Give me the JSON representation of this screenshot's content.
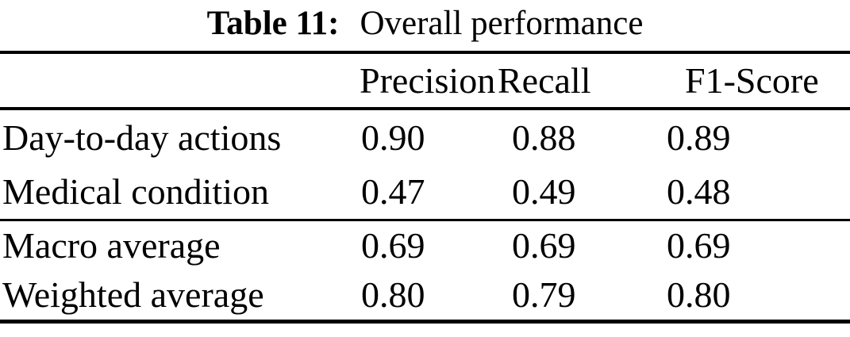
{
  "title": {
    "label": "Table 11:",
    "caption": "Overall performance"
  },
  "table": {
    "columns": {
      "metric": "",
      "precision": "Precision",
      "recall": "Recall",
      "f1": "F1-Score"
    },
    "groups": [
      {
        "rows": [
          {
            "label": "Day-to-day actions",
            "precision": "0.90",
            "recall": "0.88",
            "f1": "0.89"
          },
          {
            "label": "Medical condition",
            "precision": "0.47",
            "recall": "0.49",
            "f1": "0.48"
          }
        ]
      },
      {
        "rows": [
          {
            "label": "Macro average",
            "precision": "0.69",
            "recall": "0.69",
            "f1": "0.69"
          },
          {
            "label": "Weighted average",
            "precision": "0.80",
            "recall": "0.79",
            "f1": "0.80"
          }
        ]
      }
    ]
  },
  "chart_data": {
    "type": "table",
    "title": "Table 11: Overall performance",
    "columns": [
      "",
      "Precision",
      "Recall",
      "F1-Score"
    ],
    "rows": [
      [
        "Day-to-day actions",
        0.9,
        0.88,
        0.89
      ],
      [
        "Medical condition",
        0.47,
        0.49,
        0.48
      ],
      [
        "Macro average",
        0.69,
        0.69,
        0.69
      ],
      [
        "Weighted average",
        0.8,
        0.79,
        0.8
      ]
    ]
  },
  "colors": {
    "text": "#000000",
    "background": "#ffffff",
    "rule": "#000000"
  }
}
